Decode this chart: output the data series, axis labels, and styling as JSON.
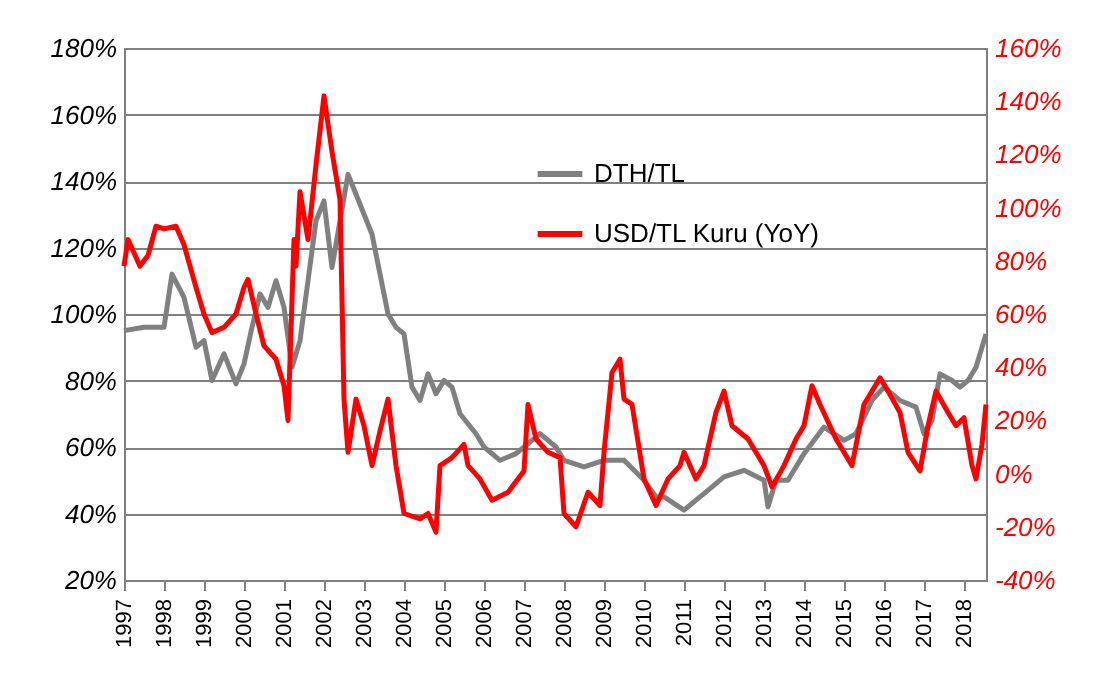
{
  "chart_data": {
    "type": "line",
    "xlim": [
      1997,
      2018.55
    ],
    "xticks": [
      1997,
      1998,
      1999,
      2000,
      2001,
      2002,
      2003,
      2004,
      2005,
      2006,
      2007,
      2008,
      2009,
      2010,
      2011,
      2012,
      2013,
      2014,
      2015,
      2016,
      2017,
      2018
    ],
    "ylim": [
      20,
      180
    ],
    "yticks": [
      {
        "value": 20,
        "label": "20%"
      },
      {
        "value": 40,
        "label": "40%"
      },
      {
        "value": 60,
        "label": "60%"
      },
      {
        "value": 80,
        "label": "80%"
      },
      {
        "value": 100,
        "label": "100%"
      },
      {
        "value": 120,
        "label": "120%"
      },
      {
        "value": 140,
        "label": "140%"
      },
      {
        "value": 160,
        "label": "160%"
      },
      {
        "value": 180,
        "label": "180%"
      }
    ],
    "y2lim": [
      -40,
      160
    ],
    "y2ticks": [
      {
        "value": -40,
        "label": "-40%"
      },
      {
        "value": -20,
        "label": "-20%"
      },
      {
        "value": 0,
        "label": "0%"
      },
      {
        "value": 20,
        "label": "20%"
      },
      {
        "value": 40,
        "label": "40%"
      },
      {
        "value": 60,
        "label": "60%"
      },
      {
        "value": 80,
        "label": "80%"
      },
      {
        "value": 100,
        "label": "100%"
      },
      {
        "value": 120,
        "label": "120%"
      },
      {
        "value": 140,
        "label": "140%"
      },
      {
        "value": 160,
        "label": "160%"
      }
    ],
    "grid": "y",
    "legend": "top right",
    "marker": "none",
    "line_style": "solid",
    "series": [
      {
        "name": "DTH/TL",
        "color": "#808080",
        "x": [
          1997.0,
          1997.5,
          1998.0,
          1998.2,
          1998.5,
          1998.8,
          1999.0,
          1999.2,
          1999.5,
          1999.8,
          2000.0,
          2000.2,
          2000.4,
          2000.6,
          2000.8,
          2001.0,
          2001.2,
          2001.4,
          2001.6,
          2001.8,
          2002.0,
          2002.2,
          2002.4,
          2002.6,
          2002.8,
          2003.0,
          2003.2,
          2003.4,
          2003.6,
          2003.8,
          2004.0,
          2004.2,
          2004.4,
          2004.6,
          2004.8,
          2005.0,
          2005.2,
          2005.4,
          2005.8,
          2006.0,
          2006.4,
          2006.8,
          2007.0,
          2007.4,
          2007.8,
          2008.0,
          2008.5,
          2009.0,
          2009.5,
          2010.0,
          2010.3,
          2010.5,
          2011.0,
          2011.3,
          2011.5,
          2012.0,
          2012.5,
          2013.0,
          2013.1,
          2013.3,
          2013.6,
          2014.0,
          2014.5,
          2015.0,
          2015.3,
          2015.7,
          2016.0,
          2016.4,
          2016.8,
          2017.0,
          2017.2,
          2017.4,
          2017.7,
          2017.9,
          2018.1,
          2018.3,
          2018.55
        ],
        "values": [
          95,
          96,
          96,
          112,
          105,
          90,
          92,
          80,
          88,
          79,
          85,
          96,
          106,
          102,
          110,
          102,
          84,
          92,
          110,
          128,
          134,
          114,
          128,
          142,
          136,
          130,
          124,
          112,
          100,
          96,
          94,
          78,
          74,
          82,
          76,
          80,
          78,
          70,
          64,
          60,
          56,
          58,
          60,
          64,
          60,
          56,
          54,
          56,
          56,
          50,
          45,
          45,
          41,
          44,
          46,
          51,
          53,
          50,
          42,
          50,
          50,
          58,
          66,
          62,
          64,
          74,
          78,
          74,
          72,
          64,
          68,
          82,
          80,
          78,
          80,
          84,
          94
        ]
      },
      {
        "name": "USD/TL Kuru (YoY)",
        "color": "#ff0000",
        "axis": "y2",
        "x": [
          1997.0,
          1997.1,
          1997.4,
          1997.6,
          1997.8,
          1998.0,
          1998.3,
          1998.5,
          1998.8,
          1999.0,
          1999.2,
          1999.5,
          1999.8,
          2000.0,
          2000.1,
          2000.3,
          2000.5,
          2000.8,
          2001.0,
          2001.1,
          2001.25,
          2001.3,
          2001.4,
          2001.6,
          2001.8,
          2002.0,
          2002.2,
          2002.4,
          2002.5,
          2002.6,
          2002.8,
          2003.0,
          2003.2,
          2003.4,
          2003.6,
          2003.8,
          2004.0,
          2004.4,
          2004.6,
          2004.8,
          2004.9,
          2005.2,
          2005.5,
          2005.6,
          2005.9,
          2006.2,
          2006.6,
          2007.0,
          2007.1,
          2007.3,
          2007.6,
          2007.9,
          2008.0,
          2008.3,
          2008.6,
          2008.9,
          2009.0,
          2009.2,
          2009.4,
          2009.5,
          2009.7,
          2010.0,
          2010.3,
          2010.6,
          2010.9,
          2011.0,
          2011.3,
          2011.5,
          2011.8,
          2012.0,
          2012.2,
          2012.6,
          2013.0,
          2013.2,
          2013.5,
          2013.8,
          2014.0,
          2014.2,
          2014.4,
          2014.8,
          2015.0,
          2015.2,
          2015.5,
          2015.9,
          2016.1,
          2016.4,
          2016.6,
          2016.9,
          2017.1,
          2017.3,
          2017.6,
          2017.8,
          2018.0,
          2018.2,
          2018.3,
          2018.45,
          2018.55
        ],
        "values": [
          78,
          88,
          78,
          82,
          93,
          92,
          93,
          86,
          70,
          60,
          53,
          55,
          60,
          70,
          73,
          60,
          48,
          43,
          33,
          20,
          88,
          78,
          106,
          88,
          116,
          142,
          121,
          103,
          28,
          8,
          28,
          18,
          3,
          16,
          28,
          3,
          -15,
          -17,
          -15,
          -22,
          3,
          6,
          11,
          3,
          -2,
          -10,
          -7,
          1,
          26,
          13,
          8,
          6,
          -15,
          -20,
          -7,
          -12,
          8,
          38,
          43,
          28,
          26,
          -2,
          -12,
          -2,
          3,
          8,
          -2,
          3,
          23,
          31,
          18,
          13,
          3,
          -5,
          3,
          13,
          18,
          33,
          26,
          13,
          8,
          3,
          26,
          36,
          31,
          23,
          8,
          1,
          18,
          31,
          23,
          18,
          21,
          3,
          -2,
          11,
          26
        ]
      }
    ]
  }
}
